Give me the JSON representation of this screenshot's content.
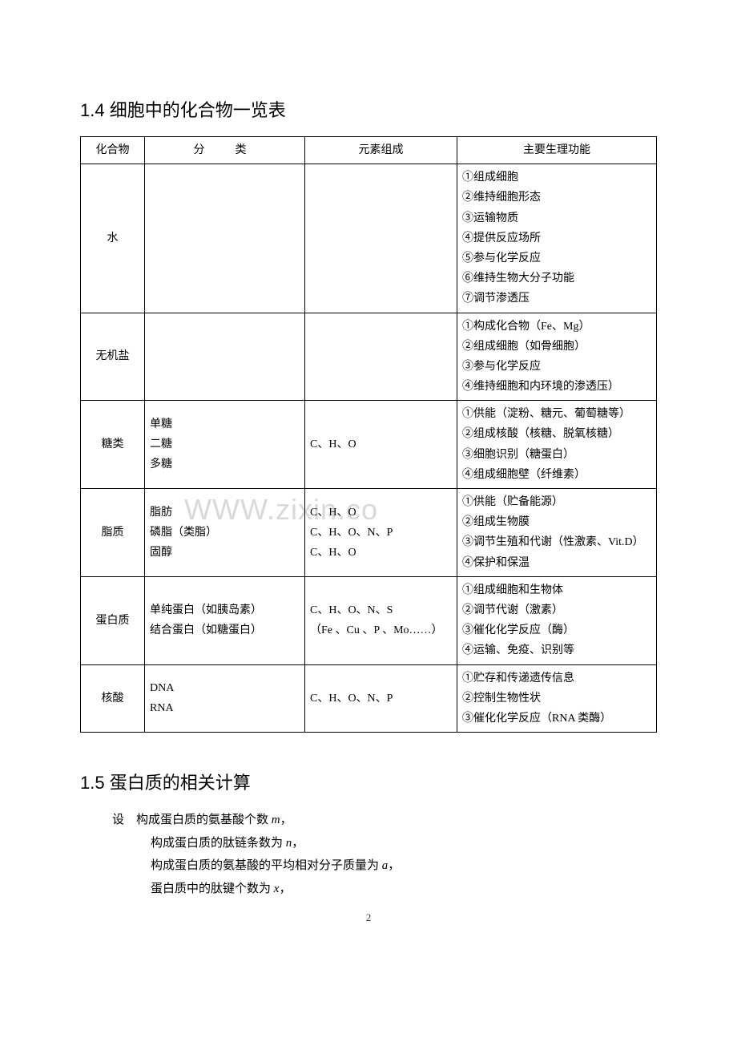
{
  "section1": {
    "title": "1.4 细胞中的化合物一览表",
    "headers": [
      "化合物",
      "分　类",
      "元素组成",
      "主要生理功能"
    ],
    "rows": [
      {
        "compound": "水",
        "category": "",
        "elements": "",
        "functions": "①组成细胞\n②维持细胞形态\n③运输物质\n④提供反应场所\n⑤参与化学反应\n⑥维持生物大分子功能\n⑦调节渗透压"
      },
      {
        "compound": "无机盐",
        "category": "",
        "elements": "",
        "functions": "①构成化合物（Fe、Mg）\n②组成细胞（如骨细胞）\n③参与化学反应\n④维持细胞和内环境的渗透压）"
      },
      {
        "compound": "糖类",
        "category": "单糖\n二糖\n多糖",
        "elements": "C、H、O",
        "functions": "①供能（淀粉、糖元、葡萄糖等）\n②组成核酸（核糖、脱氧核糖）\n③细胞识别（糖蛋白）\n④组成细胞壁（纤维素）"
      },
      {
        "compound": "脂质",
        "category": "脂肪\n磷脂（类脂）\n固醇",
        "elements": "C、H、O\nC、H、O、N、P\nC、H、O",
        "functions": "①供能（贮备能源）\n②组成生物膜\n③调节生殖和代谢（性激素、Vit.D）\n④保护和保温"
      },
      {
        "compound": "蛋白质",
        "category": "单纯蛋白（如胰岛素）\n结合蛋白（如糖蛋白）",
        "elements": "C、H、O、N、S\n（Fe 、Cu 、P 、Mo……）",
        "functions": "①组成细胞和生物体\n②调节代谢（激素）\n③催化化学反应（酶）\n④运输、免疫、识别等"
      },
      {
        "compound": "核酸",
        "category": "DNA\nRNA",
        "elements": "C、H、O、N、P",
        "functions": "①贮存和传递遗传信息\n②控制生物性状\n③催化化学反应（RNA 类酶）"
      }
    ]
  },
  "section2": {
    "title": "1.5 蛋白质的相关计算",
    "label": "设",
    "lines": [
      {
        "pre": "构成蛋白质的氨基酸个数 ",
        "var": "m",
        "post": "，"
      },
      {
        "pre": "构成蛋白质的肽链条数为 ",
        "var": "n",
        "post": "，"
      },
      {
        "pre": "构成蛋白质的氨基酸的平均相对分子质量为 ",
        "var": "a",
        "post": "，"
      },
      {
        "pre": "蛋白质中的肽键个数为 ",
        "var": "x",
        "post": "，"
      }
    ]
  },
  "watermark": "WWW.zixin.co",
  "page_number": "2",
  "colors": {
    "text": "#000000",
    "background": "#ffffff",
    "border": "#000000",
    "watermark": "#d9d9d9"
  }
}
